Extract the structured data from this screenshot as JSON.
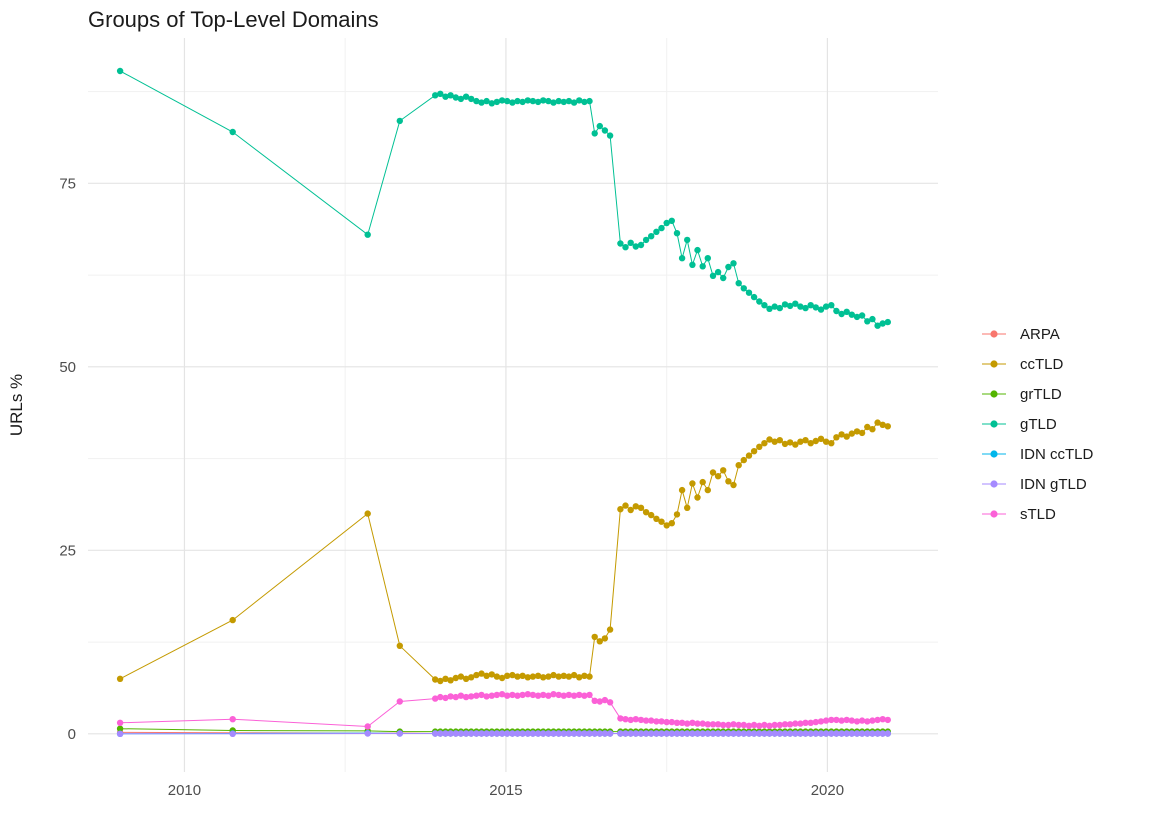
{
  "chart_data": {
    "type": "line",
    "title": "Groups of Top-Level Domains",
    "xlabel": "",
    "ylabel": "URLs %",
    "xlim": [
      2008.5,
      2021.72
    ],
    "ylim": [
      -5.2,
      94.8
    ],
    "x_ticks": [
      2010,
      2015,
      2020
    ],
    "x_tick_labels": [
      "2010",
      "2015",
      "2020"
    ],
    "y_ticks": [
      0,
      25,
      50,
      75
    ],
    "y_tick_labels": [
      "0",
      "25",
      "50",
      "75"
    ],
    "x_minor_ticks": [
      2012.5,
      2017.5
    ],
    "y_minor_ticks": [
      12.5,
      37.5,
      62.5,
      87.5
    ],
    "grid": true,
    "legend_position": "right",
    "marker_radius": 3.2,
    "x": [
      2009.0,
      2010.75,
      2012.85,
      2013.35,
      2013.9,
      2013.98,
      2014.06,
      2014.14,
      2014.22,
      2014.3,
      2014.38,
      2014.46,
      2014.54,
      2014.62,
      2014.7,
      2014.78,
      2014.86,
      2014.94,
      2015.02,
      2015.1,
      2015.18,
      2015.26,
      2015.34,
      2015.42,
      2015.5,
      2015.58,
      2015.66,
      2015.74,
      2015.82,
      2015.9,
      2015.98,
      2016.06,
      2016.14,
      2016.22,
      2016.3,
      2016.38,
      2016.46,
      2016.54,
      2016.62,
      2016.78,
      2016.86,
      2016.94,
      2017.02,
      2017.1,
      2017.18,
      2017.26,
      2017.34,
      2017.42,
      2017.5,
      2017.58,
      2017.66,
      2017.74,
      2017.82,
      2017.9,
      2017.98,
      2018.06,
      2018.14,
      2018.22,
      2018.3,
      2018.38,
      2018.46,
      2018.54,
      2018.62,
      2018.7,
      2018.78,
      2018.86,
      2018.94,
      2019.02,
      2019.1,
      2019.18,
      2019.26,
      2019.34,
      2019.42,
      2019.5,
      2019.58,
      2019.66,
      2019.74,
      2019.82,
      2019.9,
      2019.98,
      2020.06,
      2020.14,
      2020.22,
      2020.3,
      2020.38,
      2020.46,
      2020.54,
      2020.62,
      2020.7,
      2020.78,
      2020.86,
      2020.94
    ],
    "series": [
      {
        "name": "ARPA",
        "color": "#F8766D",
        "y": {
          "head": [
            0.2,
            0.15,
            0.1,
            0.1
          ],
          "fill": 0.05
        }
      },
      {
        "name": "ccTLD",
        "color": "#C49A00",
        "y": [
          7.5,
          15.5,
          30.0,
          12.0,
          7.4,
          7.2,
          7.5,
          7.3,
          7.6,
          7.8,
          7.5,
          7.7,
          8.0,
          8.2,
          7.9,
          8.1,
          7.8,
          7.6,
          7.9,
          8.0,
          7.8,
          7.9,
          7.7,
          7.8,
          7.9,
          7.7,
          7.8,
          8.0,
          7.8,
          7.9,
          7.8,
          8.0,
          7.7,
          7.9,
          7.8,
          13.2,
          12.6,
          13.0,
          14.2,
          30.6,
          31.1,
          30.5,
          31.0,
          30.8,
          30.2,
          29.8,
          29.3,
          28.9,
          28.4,
          28.7,
          29.9,
          33.2,
          30.8,
          34.1,
          32.2,
          34.3,
          33.2,
          35.6,
          35.1,
          35.9,
          34.4,
          33.9,
          36.6,
          37.3,
          37.9,
          38.5,
          39.1,
          39.6,
          40.1,
          39.8,
          40.0,
          39.5,
          39.7,
          39.4,
          39.8,
          40.0,
          39.6,
          39.9,
          40.2,
          39.8,
          39.6,
          40.4,
          40.8,
          40.5,
          40.9,
          41.2,
          41.0,
          41.8,
          41.5,
          42.4,
          42.1,
          41.9
        ]
      },
      {
        "name": "grTLD",
        "color": "#53B400",
        "y": {
          "head": [
            0.7,
            0.45,
            0.4,
            0.3
          ],
          "fill": 0.3
        }
      },
      {
        "name": "gTLD",
        "color": "#00C094",
        "y": [
          90.3,
          82.0,
          68.0,
          83.5,
          87.0,
          87.2,
          86.8,
          87.0,
          86.7,
          86.5,
          86.8,
          86.5,
          86.2,
          86.0,
          86.2,
          85.9,
          86.1,
          86.3,
          86.2,
          86.0,
          86.2,
          86.1,
          86.3,
          86.2,
          86.1,
          86.3,
          86.2,
          86.0,
          86.2,
          86.1,
          86.2,
          86.0,
          86.3,
          86.1,
          86.2,
          81.8,
          82.8,
          82.2,
          81.5,
          66.8,
          66.3,
          66.9,
          66.4,
          66.6,
          67.3,
          67.8,
          68.4,
          68.9,
          69.6,
          69.9,
          68.2,
          64.8,
          67.3,
          63.9,
          65.9,
          63.7,
          64.8,
          62.4,
          62.9,
          62.1,
          63.6,
          64.1,
          61.4,
          60.7,
          60.1,
          59.5,
          58.9,
          58.4,
          57.9,
          58.2,
          58.0,
          58.5,
          58.3,
          58.6,
          58.2,
          58.0,
          58.4,
          58.1,
          57.8,
          58.2,
          58.4,
          57.6,
          57.2,
          57.5,
          57.1,
          56.8,
          57.0,
          56.2,
          56.5,
          55.6,
          55.9,
          56.1
        ]
      },
      {
        "name": "IDN ccTLD",
        "color": "#00B6EB",
        "y": {
          "head": [
            0.0,
            0.05,
            0.1,
            0.05
          ],
          "fill": 0.05
        }
      },
      {
        "name": "IDN gTLD",
        "color": "#A58AFF",
        "y": {
          "head": [
            0.0,
            0.0,
            0.05,
            0.05
          ],
          "fill": 0.05
        }
      },
      {
        "name": "sTLD",
        "color": "#FB61D7",
        "y": [
          1.5,
          2.0,
          1.0,
          4.4,
          4.8,
          5.0,
          4.9,
          5.1,
          5.0,
          5.2,
          5.0,
          5.1,
          5.2,
          5.3,
          5.1,
          5.2,
          5.3,
          5.4,
          5.2,
          5.3,
          5.2,
          5.3,
          5.4,
          5.3,
          5.2,
          5.3,
          5.2,
          5.4,
          5.3,
          5.2,
          5.3,
          5.2,
          5.3,
          5.2,
          5.3,
          4.5,
          4.4,
          4.6,
          4.3,
          2.1,
          2.0,
          1.9,
          2.0,
          1.9,
          1.8,
          1.8,
          1.7,
          1.7,
          1.6,
          1.6,
          1.5,
          1.5,
          1.4,
          1.5,
          1.4,
          1.4,
          1.3,
          1.3,
          1.3,
          1.2,
          1.2,
          1.3,
          1.2,
          1.2,
          1.1,
          1.2,
          1.1,
          1.2,
          1.1,
          1.2,
          1.2,
          1.3,
          1.3,
          1.4,
          1.4,
          1.5,
          1.5,
          1.6,
          1.7,
          1.8,
          1.9,
          1.9,
          1.8,
          1.9,
          1.8,
          1.7,
          1.8,
          1.7,
          1.8,
          1.9,
          2.0,
          1.9
        ]
      }
    ]
  }
}
